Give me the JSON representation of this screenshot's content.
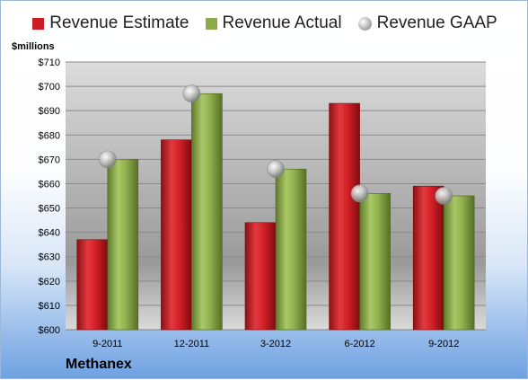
{
  "chart_data": {
    "type": "bar",
    "title": "",
    "ylabel": "$millions",
    "xlabel": "",
    "categories": [
      "9-2011",
      "12-2011",
      "3-2012",
      "6-2012",
      "9-2012"
    ],
    "series": [
      {
        "name": "Revenue Estimate",
        "kind": "bar",
        "color": "#cc1d24",
        "values": [
          637,
          678,
          644,
          693,
          659
        ]
      },
      {
        "name": "Revenue Actual",
        "kind": "bar",
        "color": "#8cac4a",
        "values": [
          670,
          697,
          666,
          656,
          655
        ]
      },
      {
        "name": "Revenue GAAP",
        "kind": "marker",
        "color": "#b8b8b8",
        "values": [
          670,
          697,
          666,
          656,
          655
        ]
      }
    ],
    "ylim": [
      600,
      710
    ],
    "yticks": [
      600,
      610,
      620,
      630,
      640,
      650,
      660,
      670,
      680,
      690,
      700,
      710
    ],
    "ytick_labels": [
      "$600",
      "$610",
      "$620",
      "$630",
      "$640",
      "$650",
      "$660",
      "$670",
      "$680",
      "$690",
      "$700",
      "$710"
    ],
    "grid": true,
    "legend_position": "top"
  },
  "company": "Methanex"
}
